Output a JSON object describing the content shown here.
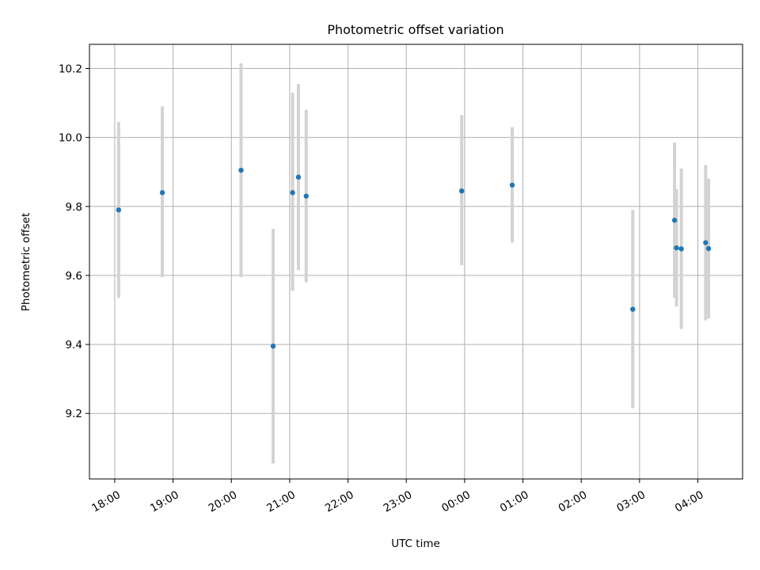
{
  "chart_data": {
    "type": "scatter",
    "title": "Photometric offset variation",
    "xlabel": "UTC time",
    "ylabel": "Photometric offset",
    "x_tick_labels": [
      "18:00",
      "19:00",
      "20:00",
      "21:00",
      "22:00",
      "23:00",
      "00:00",
      "01:00",
      "02:00",
      "03:00",
      "04:00"
    ],
    "y_ticks": [
      9.2,
      9.4,
      9.6,
      9.8,
      10.0,
      10.2
    ],
    "y_tick_labels": [
      "9.2",
      "9.4",
      "9.6",
      "9.8",
      "10.0",
      "10.2"
    ],
    "xlim": [
      "17:34",
      "04:46"
    ],
    "ylim": [
      9.01,
      10.27
    ],
    "grid": true,
    "colors": {
      "points": "#1f77b4",
      "error_bars": "#d3d3d3"
    },
    "points": [
      {
        "t": "18:04",
        "y": 9.79,
        "ylo": 9.535,
        "yhi": 10.045
      },
      {
        "t": "18:49",
        "y": 9.84,
        "ylo": 9.595,
        "yhi": 10.09
      },
      {
        "t": "20:10",
        "y": 9.905,
        "ylo": 9.595,
        "yhi": 10.215
      },
      {
        "t": "20:43",
        "y": 9.395,
        "ylo": 9.055,
        "yhi": 9.735
      },
      {
        "t": "21:03",
        "y": 9.84,
        "ylo": 9.555,
        "yhi": 10.13
      },
      {
        "t": "21:09",
        "y": 9.885,
        "ylo": 9.615,
        "yhi": 10.155
      },
      {
        "t": "21:17",
        "y": 9.83,
        "ylo": 9.58,
        "yhi": 10.08
      },
      {
        "t": "23:57",
        "y": 9.845,
        "ylo": 9.63,
        "yhi": 10.065
      },
      {
        "t": "00:49",
        "y": 9.862,
        "ylo": 9.695,
        "yhi": 10.03
      },
      {
        "t": "02:53",
        "y": 9.502,
        "ylo": 9.215,
        "yhi": 9.79
      },
      {
        "t": "03:36",
        "y": 9.76,
        "ylo": 9.535,
        "yhi": 9.985
      },
      {
        "t": "03:38",
        "y": 9.68,
        "ylo": 9.51,
        "yhi": 9.85
      },
      {
        "t": "03:43",
        "y": 9.677,
        "ylo": 9.445,
        "yhi": 9.91
      },
      {
        "t": "04:08",
        "y": 9.695,
        "ylo": 9.47,
        "yhi": 9.92
      },
      {
        "t": "04:11",
        "y": 9.678,
        "ylo": 9.475,
        "yhi": 9.88
      }
    ]
  }
}
